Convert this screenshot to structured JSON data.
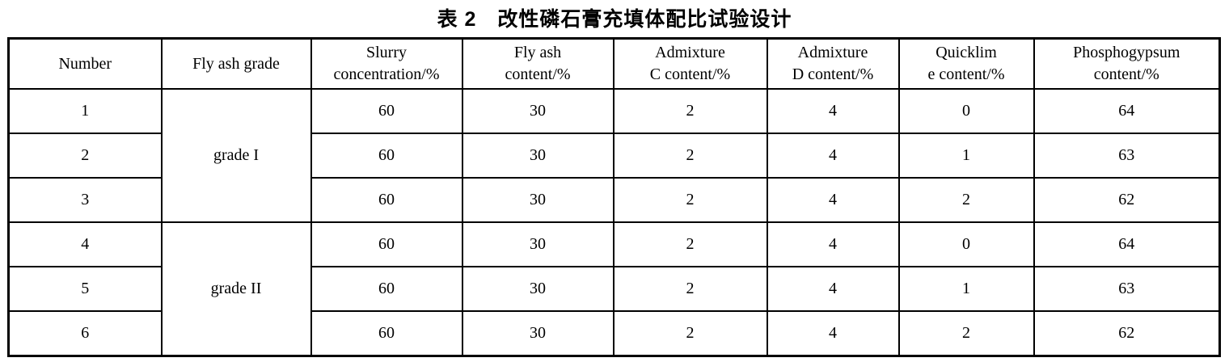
{
  "title": "表 2　改性磷石膏充填体配比试验设计",
  "table": {
    "columns": [
      [
        "Number"
      ],
      [
        "Fly ash grade"
      ],
      [
        "Slurry",
        "concentration/%"
      ],
      [
        "Fly ash",
        "content/%"
      ],
      [
        "Admixture",
        "C content/%"
      ],
      [
        "Admixture",
        "D content/%"
      ],
      [
        "Quicklim",
        "e content/%"
      ],
      [
        "Phosphogypsum",
        "content/%"
      ]
    ],
    "grade_groups": [
      {
        "label": "grade I",
        "span": 3
      },
      {
        "label": "grade II",
        "span": 3
      }
    ],
    "rows": [
      {
        "number": "1",
        "values": [
          "60",
          "30",
          "2",
          "4",
          "0",
          "64"
        ]
      },
      {
        "number": "2",
        "values": [
          "60",
          "30",
          "2",
          "4",
          "1",
          "63"
        ]
      },
      {
        "number": "3",
        "values": [
          "60",
          "30",
          "2",
          "4",
          "2",
          "62"
        ]
      },
      {
        "number": "4",
        "values": [
          "60",
          "30",
          "2",
          "4",
          "0",
          "64"
        ]
      },
      {
        "number": "5",
        "values": [
          "60",
          "30",
          "2",
          "4",
          "1",
          "63"
        ]
      },
      {
        "number": "6",
        "values": [
          "60",
          "30",
          "2",
          "4",
          "2",
          "62"
        ]
      }
    ]
  }
}
